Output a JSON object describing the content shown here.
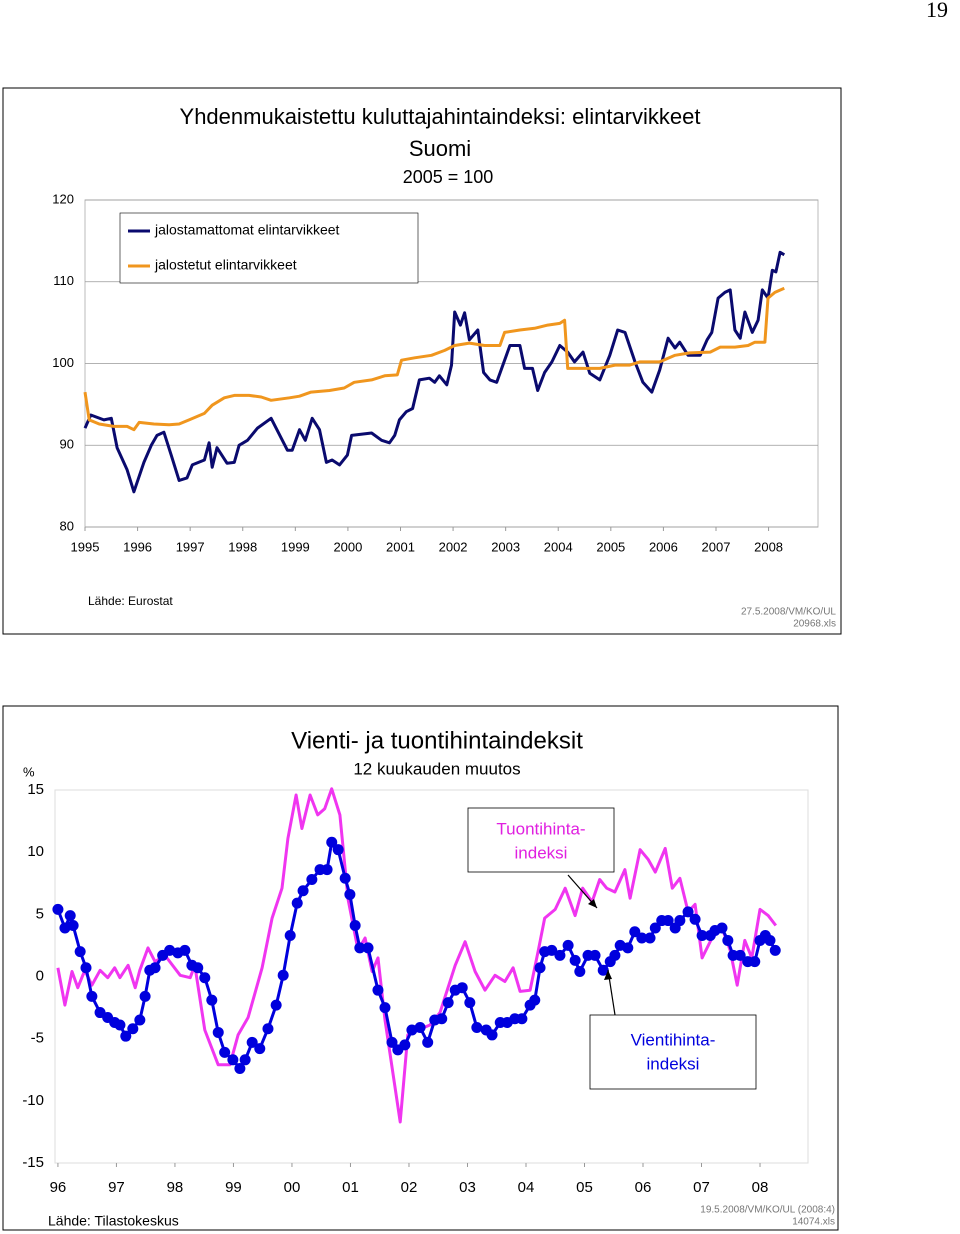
{
  "page_number": "19",
  "chart_data": [
    {
      "type": "line",
      "title": [
        "Yhdenmukaistettu kuluttajahintaindeksi: elintarvikkeet",
        "Suomi"
      ],
      "subtitle": "2005 = 100",
      "source": "Lähde: Eurostat",
      "file_note": [
        "27.5.2008/VM/KO/UL",
        "20968.xls"
      ],
      "xlim": [
        1995,
        2008.94
      ],
      "xticks": [
        1995,
        1996,
        1997,
        1998,
        1999,
        2000,
        2001,
        2002,
        2003,
        2004,
        2005,
        2006,
        2007,
        2008
      ],
      "ylim": [
        80,
        120
      ],
      "yticks": [
        80,
        90,
        100,
        110,
        120
      ],
      "grid": true,
      "legend": "top-left",
      "series": [
        {
          "name": "jalostamattomat elintarvikkeet",
          "color": "#0a0a6e",
          "x": [
            1995.0,
            1995.11,
            1995.36,
            1995.5,
            1995.61,
            1995.8,
            1995.93,
            1996.12,
            1996.26,
            1996.37,
            1996.5,
            1996.64,
            1996.79,
            1996.94,
            1997.04,
            1997.27,
            1997.36,
            1997.42,
            1997.51,
            1997.7,
            1997.84,
            1997.93,
            1998.09,
            1998.28,
            1998.54,
            1998.85,
            1998.94,
            1999.08,
            1999.19,
            1999.32,
            1999.46,
            1999.59,
            1999.7,
            1999.84,
            1999.99,
            2000.07,
            2000.45,
            2000.64,
            2000.79,
            2000.89,
            2000.98,
            2001.11,
            2001.23,
            2001.36,
            2001.55,
            2001.65,
            2001.74,
            2001.88,
            2001.97,
            2002.03,
            2002.14,
            2002.22,
            2002.31,
            2002.47,
            2002.58,
            2002.7,
            2002.83,
            2003.08,
            2003.27,
            2003.36,
            2003.51,
            2003.61,
            2003.74,
            2003.88,
            2004.03,
            2004.18,
            2004.31,
            2004.47,
            2004.6,
            2004.79,
            2004.98,
            2005.13,
            2005.27,
            2005.46,
            2005.61,
            2005.78,
            2005.93,
            2006.09,
            2006.22,
            2006.31,
            2006.47,
            2006.7,
            2006.83,
            2006.92,
            2007.04,
            2007.17,
            2007.27,
            2007.36,
            2007.46,
            2007.55,
            2007.69,
            2007.8,
            2007.88,
            2007.99,
            2008.07,
            2008.14,
            2008.22,
            2008.3
          ],
          "values": [
            92.1,
            93.7,
            93.1,
            93.3,
            89.7,
            87.0,
            84.3,
            87.9,
            90.0,
            91.2,
            91.6,
            88.8,
            85.7,
            86.0,
            87.6,
            88.2,
            90.3,
            87.3,
            89.7,
            87.8,
            87.9,
            90.0,
            90.6,
            92.1,
            93.3,
            89.4,
            89.4,
            91.9,
            90.6,
            93.3,
            91.9,
            87.9,
            88.2,
            87.6,
            88.8,
            91.2,
            91.5,
            90.6,
            90.3,
            91.2,
            93.1,
            94.1,
            94.5,
            98.0,
            98.2,
            97.7,
            98.5,
            97.4,
            99.8,
            106.3,
            104.7,
            106.2,
            102.9,
            104.1,
            98.9,
            98.0,
            97.7,
            102.2,
            102.2,
            99.4,
            99.4,
            96.7,
            98.9,
            100.2,
            102.2,
            101.4,
            100.2,
            101.4,
            98.8,
            98.0,
            101.0,
            104.1,
            103.8,
            100.2,
            97.7,
            96.5,
            99.2,
            103.1,
            101.9,
            102.6,
            101.0,
            101.0,
            102.9,
            103.8,
            108.0,
            108.7,
            109.0,
            104.1,
            103.1,
            106.3,
            103.8,
            105.3,
            109.0,
            108.0,
            111.4,
            111.2,
            113.6,
            113.3
          ]
        },
        {
          "name": "jalostetut elintarvikkeet",
          "color": "#f0961e",
          "x": [
            1995.0,
            1995.08,
            1995.27,
            1995.55,
            1995.8,
            1995.93,
            1996.03,
            1996.31,
            1996.6,
            1996.79,
            1996.98,
            1997.27,
            1997.42,
            1997.65,
            1997.84,
            1998.12,
            1998.35,
            1998.54,
            1998.89,
            1999.08,
            1999.3,
            1999.65,
            1999.93,
            2000.12,
            2000.45,
            2000.7,
            2000.94,
            2001.02,
            2001.27,
            2001.59,
            2001.84,
            2002.03,
            2002.31,
            2002.6,
            2002.89,
            2002.98,
            2003.27,
            2003.55,
            2003.8,
            2004.03,
            2004.12,
            2004.18,
            2004.5,
            2004.79,
            2005.08,
            2005.36,
            2005.55,
            2005.93,
            2006.22,
            2006.5,
            2006.89,
            2007.08,
            2007.36,
            2007.61,
            2007.74,
            2007.93,
            2007.99,
            2008.12,
            2008.3
          ],
          "values": [
            96.5,
            93.1,
            92.6,
            92.3,
            92.3,
            91.9,
            92.8,
            92.6,
            92.5,
            92.6,
            93.1,
            93.9,
            94.9,
            95.8,
            96.1,
            96.1,
            95.9,
            95.5,
            95.8,
            96.0,
            96.5,
            96.7,
            97.0,
            97.7,
            98.0,
            98.5,
            98.6,
            100.4,
            100.7,
            101.0,
            101.6,
            102.2,
            102.5,
            102.2,
            102.2,
            103.8,
            104.1,
            104.3,
            104.7,
            104.9,
            105.3,
            99.4,
            99.4,
            99.4,
            99.8,
            99.8,
            100.2,
            100.2,
            101.0,
            101.3,
            101.4,
            102.0,
            102.0,
            102.2,
            102.6,
            102.6,
            108.0,
            108.7,
            109.2
          ]
        }
      ]
    },
    {
      "type": "line",
      "title": "Vienti-  ja tuontihintaindeksit",
      "subtitle": "12 kuukauden muutos",
      "y_label": "%",
      "source": "Lähde: Tilastokeskus",
      "file_note": [
        "19.5.2008/VM/KO/UL (2008:4)",
        "14074.xls"
      ],
      "annotations": [
        [
          "Tuontihinta-",
          "indeksi"
        ],
        [
          "Vientihinta-",
          "indeksi"
        ]
      ],
      "xlim": [
        1995.95,
        2008.82
      ],
      "xticks": [
        {
          "value": 1996,
          "label": "96"
        },
        {
          "value": 1997,
          "label": "97"
        },
        {
          "value": 1998,
          "label": "98"
        },
        {
          "value": 1999,
          "label": "99"
        },
        {
          "value": 2000,
          "label": "00"
        },
        {
          "value": 2001,
          "label": "01"
        },
        {
          "value": 2002,
          "label": "02"
        },
        {
          "value": 2003,
          "label": "03"
        },
        {
          "value": 2004,
          "label": "04"
        },
        {
          "value": 2005,
          "label": "05"
        },
        {
          "value": 2006,
          "label": "06"
        },
        {
          "value": 2007,
          "label": "07"
        },
        {
          "value": 2008,
          "label": "08"
        }
      ],
      "ylim": [
        -15,
        15
      ],
      "yticks": [
        -15,
        -10,
        -5,
        0,
        5,
        10,
        15
      ],
      "grid": false,
      "series": [
        {
          "color": "#f035f0",
          "x": [
            1996.0,
            1996.12,
            1996.24,
            1996.34,
            1996.46,
            1996.58,
            1996.72,
            1996.85,
            1996.97,
            1997.06,
            1997.2,
            1997.32,
            1997.4,
            1997.54,
            1997.66,
            1997.83,
            1998.09,
            1998.26,
            1998.34,
            1998.51,
            1998.74,
            1998.94,
            1999.08,
            1999.25,
            1999.49,
            1999.66,
            1999.83,
            1999.93,
            2000.07,
            2000.17,
            2000.31,
            2000.44,
            2000.56,
            2000.68,
            2000.82,
            2000.96,
            2001.13,
            2001.25,
            2001.37,
            2001.47,
            2001.59,
            2001.85,
            2001.98,
            2002.15,
            2002.36,
            2002.53,
            2002.79,
            2002.96,
            2003.13,
            2003.3,
            2003.47,
            2003.64,
            2003.78,
            2003.9,
            2004.07,
            2004.21,
            2004.32,
            2004.5,
            2004.67,
            2004.84,
            2004.97,
            2005.13,
            2005.26,
            2005.38,
            2005.52,
            2005.69,
            2005.78,
            2005.95,
            2006.09,
            2006.21,
            2006.38,
            2006.5,
            2006.63,
            2006.77,
            2006.89,
            2007.01,
            2007.18,
            2007.35,
            2007.49,
            2007.61,
            2007.74,
            2007.86,
            2008.0,
            2008.14,
            2008.27
          ],
          "values": [
            0.7,
            -2.3,
            0.4,
            -0.9,
            0.5,
            -0.7,
            0.5,
            -0.1,
            0.7,
            -0.1,
            0.9,
            -0.9,
            0.5,
            2.3,
            1.2,
            1.7,
            0.1,
            -0.1,
            0.9,
            -4.3,
            -7.1,
            -7.1,
            -4.7,
            -3.3,
            0.7,
            4.7,
            7.1,
            11.1,
            14.6,
            11.9,
            14.6,
            13.0,
            13.5,
            15.1,
            13.0,
            6.2,
            2.1,
            3.1,
            0.4,
            1.5,
            -3.5,
            -11.7,
            -4.7,
            -4.3,
            -3.9,
            -2.9,
            0.9,
            2.8,
            0.4,
            -1.1,
            0.1,
            -0.4,
            0.7,
            -1.2,
            -1.1,
            2.1,
            4.7,
            5.4,
            7.1,
            4.9,
            7.1,
            6.0,
            7.8,
            7.1,
            6.8,
            8.6,
            6.3,
            10.2,
            9.4,
            8.4,
            10.3,
            7.1,
            7.9,
            5.2,
            5.8,
            1.5,
            3.1,
            3.9,
            2.1,
            -0.7,
            2.9,
            1.5,
            5.4,
            4.9,
            4.1
          ]
        },
        {
          "color": "#0000dd",
          "marker": "circle",
          "x": [
            1996.0,
            1996.12,
            1996.21,
            1996.26,
            1996.38,
            1996.48,
            1996.58,
            1996.72,
            1996.85,
            1996.97,
            1997.06,
            1997.16,
            1997.28,
            1997.4,
            1997.49,
            1997.57,
            1997.66,
            1997.79,
            1997.91,
            1998.05,
            1998.17,
            1998.29,
            1998.39,
            1998.51,
            1998.63,
            1998.74,
            1998.85,
            1998.99,
            1999.11,
            1999.2,
            1999.32,
            1999.45,
            1999.59,
            1999.73,
            1999.85,
            1999.97,
            2000.09,
            2000.19,
            2000.34,
            2000.48,
            2000.6,
            2000.68,
            2000.79,
            2000.91,
            2000.99,
            2001.08,
            2001.16,
            2001.3,
            2001.47,
            2001.59,
            2001.71,
            2001.81,
            2001.93,
            2002.05,
            2002.19,
            2002.32,
            2002.44,
            2002.56,
            2002.67,
            2002.79,
            2002.91,
            2003.04,
            2003.16,
            2003.32,
            2003.42,
            2003.56,
            2003.68,
            2003.81,
            2003.93,
            2004.07,
            2004.15,
            2004.24,
            2004.32,
            2004.44,
            2004.58,
            2004.72,
            2004.84,
            2004.92,
            2005.06,
            2005.18,
            2005.32,
            2005.44,
            2005.52,
            2005.61,
            2005.74,
            2005.86,
            2005.98,
            2006.12,
            2006.21,
            2006.32,
            2006.43,
            2006.55,
            2006.63,
            2006.77,
            2006.89,
            2007.01,
            2007.15,
            2007.23,
            2007.35,
            2007.45,
            2007.54,
            2007.66,
            2007.79,
            2007.91,
            2008.0,
            2008.09,
            2008.17,
            2008.26
          ],
          "values": [
            5.4,
            3.9,
            4.9,
            4.1,
            2.0,
            0.7,
            -1.6,
            -2.9,
            -3.3,
            -3.7,
            -3.9,
            -4.8,
            -4.2,
            -3.5,
            -1.6,
            0.5,
            0.7,
            1.7,
            2.1,
            1.9,
            2.1,
            0.9,
            0.7,
            -0.1,
            -1.9,
            -4.5,
            -6.1,
            -6.7,
            -7.4,
            -6.7,
            -5.3,
            -5.8,
            -4.2,
            -2.3,
            0.1,
            3.3,
            5.9,
            6.9,
            7.8,
            8.6,
            8.6,
            10.8,
            10.2,
            7.9,
            6.6,
            4.1,
            2.3,
            2.3,
            -1.1,
            -2.5,
            -5.3,
            -5.9,
            -5.5,
            -4.3,
            -4.1,
            -5.3,
            -3.5,
            -3.4,
            -2.1,
            -1.1,
            -0.9,
            -2.1,
            -4.1,
            -4.3,
            -4.7,
            -3.7,
            -3.7,
            -3.4,
            -3.4,
            -2.3,
            -1.9,
            0.7,
            2.0,
            2.1,
            1.7,
            2.5,
            1.3,
            0.4,
            1.7,
            1.7,
            0.5,
            1.2,
            1.7,
            2.5,
            2.3,
            3.6,
            3.1,
            3.1,
            3.9,
            4.5,
            4.5,
            3.9,
            4.5,
            5.2,
            4.6,
            3.3,
            3.3,
            3.7,
            3.9,
            2.9,
            1.7,
            1.7,
            1.2,
            1.2,
            2.9,
            3.3,
            2.9,
            2.1
          ]
        }
      ]
    }
  ]
}
